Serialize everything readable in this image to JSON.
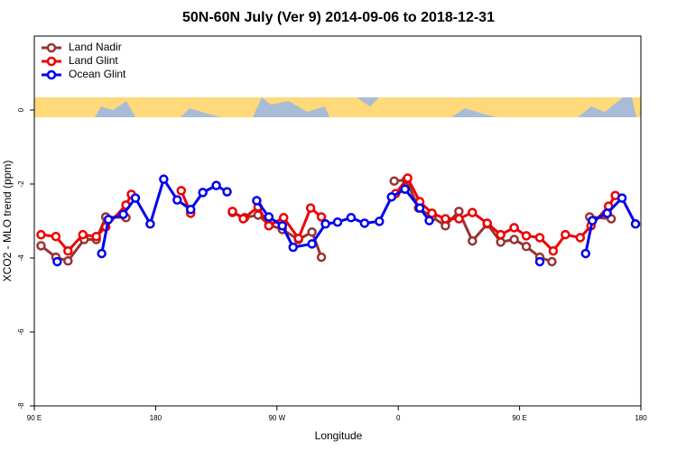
{
  "chart_data": {
    "type": "line",
    "title": "50N-60N July (Ver 9)   2014-09-06 to 2018-12-31",
    "x_label": "Longitude",
    "y_label": "XCO2 - MLO trend (ppm)",
    "xlim": [
      90,
      540
    ],
    "xticks": [
      {
        "value": 90,
        "label": "90 E"
      },
      {
        "value": 180,
        "label": "180"
      },
      {
        "value": 270,
        "label": "90 W"
      },
      {
        "value": 360,
        "label": "0"
      },
      {
        "value": 450,
        "label": "90 E"
      },
      {
        "value": 540,
        "label": "180"
      }
    ],
    "ylim": [
      -8,
      2
    ],
    "yticks": [
      0,
      -2,
      -4,
      -6,
      -8
    ],
    "legend": "top-left",
    "series": [
      {
        "name": "Land Nadir",
        "color": "#993333",
        "x": [
          95,
          106,
          115,
          127,
          136,
          143,
          158,
          null,
          237,
          246,
          256,
          264,
          274,
          286,
          296,
          303,
          null,
          357,
          366,
          375,
          385,
          395,
          405,
          415,
          426,
          436,
          446,
          455,
          465,
          474,
          null,
          502,
          518
        ],
        "values": [
          -3.67,
          -3.98,
          -4.08,
          -3.5,
          -3.5,
          -2.89,
          -2.91,
          null,
          -2.77,
          -2.91,
          -2.84,
          -3.1,
          -3.23,
          -3.5,
          -3.3,
          -3.98,
          null,
          -1.92,
          -1.89,
          -2.65,
          -2.89,
          -3.13,
          -2.74,
          -3.54,
          -3.08,
          -3.57,
          -3.5,
          -3.69,
          -3.98,
          -4.1,
          null,
          -2.89,
          -2.94
        ]
      },
      {
        "name": "Land Glint",
        "color": "#ee0000",
        "x": [
          95,
          106,
          115,
          126,
          136,
          143,
          158,
          162,
          null,
          199,
          206,
          null,
          237,
          245,
          256,
          264,
          275,
          286,
          295,
          303,
          null,
          358,
          367,
          376,
          385,
          395,
          405,
          415,
          426,
          436,
          446,
          455,
          465,
          475,
          484,
          495,
          503,
          516,
          521
        ],
        "values": [
          -3.37,
          -3.42,
          -3.81,
          -3.37,
          -3.42,
          -3.16,
          -2.57,
          -2.28,
          null,
          -2.18,
          -2.79,
          null,
          -2.74,
          -2.94,
          -2.62,
          -3.13,
          -2.91,
          -3.47,
          -2.65,
          -2.89,
          null,
          -2.26,
          -1.84,
          -2.48,
          -2.79,
          -2.94,
          -2.94,
          -2.77,
          -3.06,
          -3.37,
          -3.18,
          -3.4,
          -3.45,
          -3.81,
          -3.37,
          -3.45,
          -3.13,
          -2.6,
          -2.31
        ]
      },
      {
        "name": "Ocean Glint",
        "color": "#0000ee",
        "x": [
          107,
          null,
          140,
          145,
          156,
          165,
          176,
          186,
          196,
          206,
          215,
          225,
          233,
          null,
          255,
          264,
          274,
          282,
          296,
          306,
          315,
          325,
          335,
          346,
          355,
          365,
          376,
          383,
          null,
          465,
          null,
          499,
          504,
          515,
          526,
          536
        ],
        "values": [
          -4.1,
          null,
          -3.88,
          -2.96,
          -2.82,
          -2.38,
          -3.08,
          -1.87,
          -2.43,
          -2.69,
          -2.23,
          -2.04,
          -2.21,
          null,
          -2.45,
          -2.89,
          -3.13,
          -3.71,
          -3.62,
          -3.08,
          -3.03,
          -2.91,
          -3.06,
          -3.01,
          -2.35,
          -2.14,
          -2.65,
          -2.99,
          null,
          -4.1,
          null,
          -3.88,
          -2.99,
          -2.79,
          -2.38,
          -3.08
        ]
      }
    ]
  }
}
